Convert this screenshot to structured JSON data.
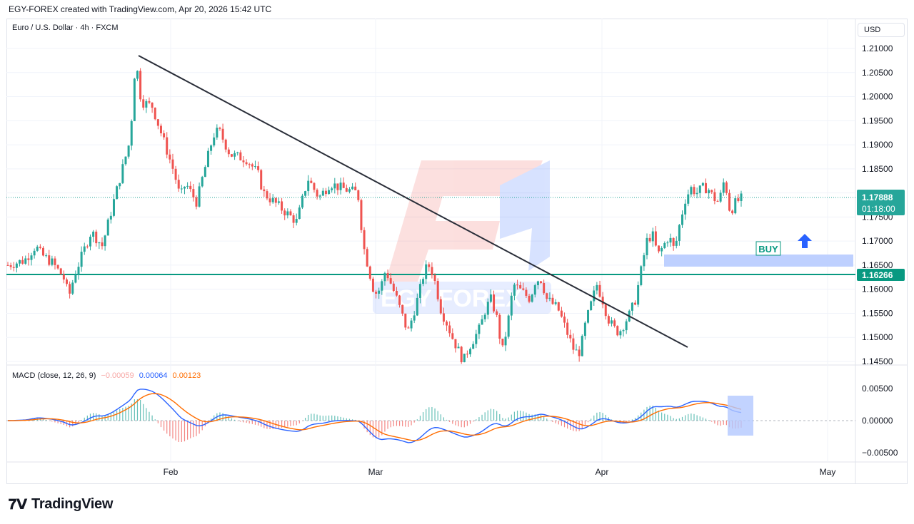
{
  "header": {
    "attribution": "EGY-FOREX created with TradingView.com, Apr 20, 2026 15:42 UTC"
  },
  "symbol": {
    "title": "Euro / U.S. Dollar · 4h · FXCM"
  },
  "currency_label": "USD",
  "macd": {
    "label": "MACD (close, 12, 26, 9)",
    "histogram": "−0.00059",
    "macd": "0.00064",
    "signal": "0.00123",
    "colors": {
      "macd": "#2962ff",
      "signal": "#ff6d00",
      "hist_pos": "#26a69a",
      "hist_neg": "#ef5350"
    }
  },
  "watermark": {
    "text": "EGY FOREX"
  },
  "annotations": {
    "buy_label": "BUY",
    "current_price": "1.17888",
    "countdown": "01:18:00",
    "support_price": "1.16266"
  },
  "footer": {
    "brand": "TradingView"
  },
  "colors": {
    "bull": "#26a69a",
    "bear": "#ef5350",
    "support": "#089981",
    "buy_zone": "#b3c8ff",
    "arrow": "#2962ff"
  },
  "chart_data": {
    "type": "candlestick",
    "price_axis": {
      "ticks": [
        "1.21000",
        "1.20500",
        "1.20000",
        "1.19500",
        "1.19000",
        "1.18500",
        "1.18000",
        "1.17500",
        "1.17000",
        "1.16500",
        "1.16000",
        "1.15500",
        "1.15000",
        "1.14500"
      ],
      "ylim": [
        1.1445,
        1.2125
      ]
    },
    "macd_axis": {
      "ticks": [
        "0.00500",
        "0.00000",
        "−0.00500"
      ]
    },
    "x_axis": {
      "ticks": [
        "Feb",
        "Mar",
        "Apr",
        "May"
      ]
    },
    "price_path": [
      [
        0,
        1.165
      ],
      [
        3,
        1.166
      ],
      [
        5,
        1.169
      ],
      [
        6,
        1.1672
      ],
      [
        8,
        1.1655
      ],
      [
        10,
        1.1625
      ],
      [
        11,
        1.1585
      ],
      [
        12,
        1.163
      ],
      [
        15,
        1.172
      ],
      [
        17,
        1.169
      ],
      [
        19,
        1.178
      ],
      [
        22,
        1.191
      ],
      [
        23,
        1.208
      ],
      [
        24,
        1.199
      ],
      [
        26,
        1.198
      ],
      [
        28,
        1.191
      ],
      [
        30,
        1.184
      ],
      [
        31,
        1.179
      ],
      [
        32,
        1.182
      ],
      [
        34,
        1.178
      ],
      [
        35,
        1.183
      ],
      [
        37,
        1.192
      ],
      [
        38,
        1.193
      ],
      [
        40,
        1.188
      ],
      [
        43,
        1.187
      ],
      [
        45,
        1.184
      ],
      [
        46,
        1.18
      ],
      [
        48,
        1.178
      ],
      [
        50,
        1.176
      ],
      [
        52,
        1.174
      ],
      [
        54,
        1.183
      ],
      [
        56,
        1.179
      ],
      [
        58,
        1.182
      ],
      [
        60,
        1.181
      ],
      [
        63,
        1.18
      ],
      [
        64,
        1.169
      ],
      [
        65,
        1.164
      ],
      [
        66,
        1.159
      ],
      [
        67,
        1.16
      ],
      [
        68,
        1.164
      ],
      [
        70,
        1.158
      ],
      [
        72,
        1.151
      ],
      [
        74,
        1.159
      ],
      [
        75,
        1.164
      ],
      [
        76,
        1.165
      ],
      [
        77,
        1.161
      ],
      [
        78,
        1.1555
      ],
      [
        79,
        1.153
      ],
      [
        80,
        1.15
      ],
      [
        82,
        1.145
      ],
      [
        83,
        1.148
      ],
      [
        85,
        1.152
      ],
      [
        86,
        1.156
      ],
      [
        87,
        1.158
      ],
      [
        88,
        1.154
      ],
      [
        89,
        1.147
      ],
      [
        90,
        1.153
      ],
      [
        91,
        1.161
      ],
      [
        92,
        1.16
      ],
      [
        94,
        1.158
      ],
      [
        95,
        1.162
      ],
      [
        96,
        1.162
      ],
      [
        97,
        1.158
      ],
      [
        99,
        1.156
      ],
      [
        100,
        1.153
      ],
      [
        101,
        1.15
      ],
      [
        102,
        1.147
      ],
      [
        103,
        1.147
      ],
      [
        104,
        1.153
      ],
      [
        106,
        1.161
      ],
      [
        107,
        1.158
      ],
      [
        108,
        1.154
      ],
      [
        109,
        1.152
      ],
      [
        110,
        1.151
      ],
      [
        112,
        1.155
      ],
      [
        113,
        1.158
      ],
      [
        114,
        1.164
      ],
      [
        115,
        1.17
      ],
      [
        116,
        1.1715
      ],
      [
        117,
        1.167
      ],
      [
        119,
        1.171
      ],
      [
        120,
        1.168
      ],
      [
        121,
        1.174
      ],
      [
        122,
        1.179
      ],
      [
        123,
        1.181
      ],
      [
        124,
        1.18
      ],
      [
        125,
        1.181
      ],
      [
        126,
        1.181
      ],
      [
        127,
        1.179
      ],
      [
        128,
        1.178
      ],
      [
        129,
        1.183
      ],
      [
        130,
        1.176
      ],
      [
        131,
        1.178
      ],
      [
        132,
        1.1788
      ]
    ],
    "trendline": {
      "from": [
        "late Jan",
        1.2082
      ],
      "to": [
        "early Apr",
        1.1477
      ]
    },
    "support_level": 1.16266,
    "current_price": 1.17888,
    "buy_zone": [
      1.164,
      1.1653
    ]
  }
}
